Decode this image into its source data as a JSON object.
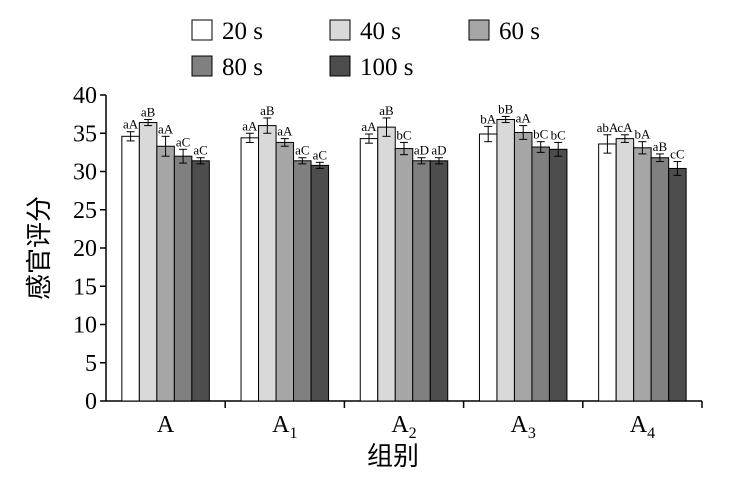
{
  "chart_data": {
    "type": "bar",
    "xlabel": "组别",
    "ylabel": "感官评分",
    "ylim": [
      0,
      40
    ],
    "yticks": [
      0,
      5,
      10,
      15,
      20,
      25,
      30,
      35,
      40
    ],
    "categories": [
      {
        "base": "A",
        "sub": ""
      },
      {
        "base": "A",
        "sub": "1"
      },
      {
        "base": "A",
        "sub": "2"
      },
      {
        "base": "A",
        "sub": "3"
      },
      {
        "base": "A",
        "sub": "4"
      }
    ],
    "legend_placement": "top",
    "series": [
      {
        "name": "20 s",
        "color": "#ffffff",
        "values": [
          34.6,
          34.4,
          34.3,
          34.9,
          33.6
        ],
        "errors": [
          0.6,
          0.6,
          0.6,
          1.0,
          1.2
        ],
        "labels": [
          "aA",
          "aA",
          "aA",
          "bA",
          "abA"
        ]
      },
      {
        "name": "40 s",
        "color": "#d9d9d9",
        "values": [
          36.4,
          36.0,
          35.8,
          36.8,
          34.3
        ],
        "errors": [
          0.4,
          1.0,
          1.2,
          0.4,
          0.5
        ],
        "labels": [
          "aB",
          "aB",
          "aB",
          "bB",
          "cA"
        ]
      },
      {
        "name": "60 s",
        "color": "#a6a6a6",
        "values": [
          33.3,
          33.8,
          33.0,
          35.1,
          33.1
        ],
        "errors": [
          1.3,
          0.5,
          0.8,
          0.9,
          0.8
        ],
        "labels": [
          "aA",
          "aA",
          "bC",
          "aA",
          "bA"
        ]
      },
      {
        "name": "80 s",
        "color": "#808080",
        "values": [
          32.0,
          31.4,
          31.4,
          33.2,
          31.8
        ],
        "errors": [
          0.9,
          0.4,
          0.4,
          0.7,
          0.5
        ],
        "labels": [
          "aC",
          "aC",
          "aD",
          "bC",
          "aB"
        ]
      },
      {
        "name": "100 s",
        "color": "#4d4d4d",
        "values": [
          31.4,
          30.8,
          31.4,
          32.9,
          30.4
        ],
        "errors": [
          0.4,
          0.4,
          0.4,
          0.9,
          0.9
        ],
        "labels": [
          "aC",
          "aC",
          "aD",
          "bC",
          "cC"
        ]
      }
    ]
  }
}
